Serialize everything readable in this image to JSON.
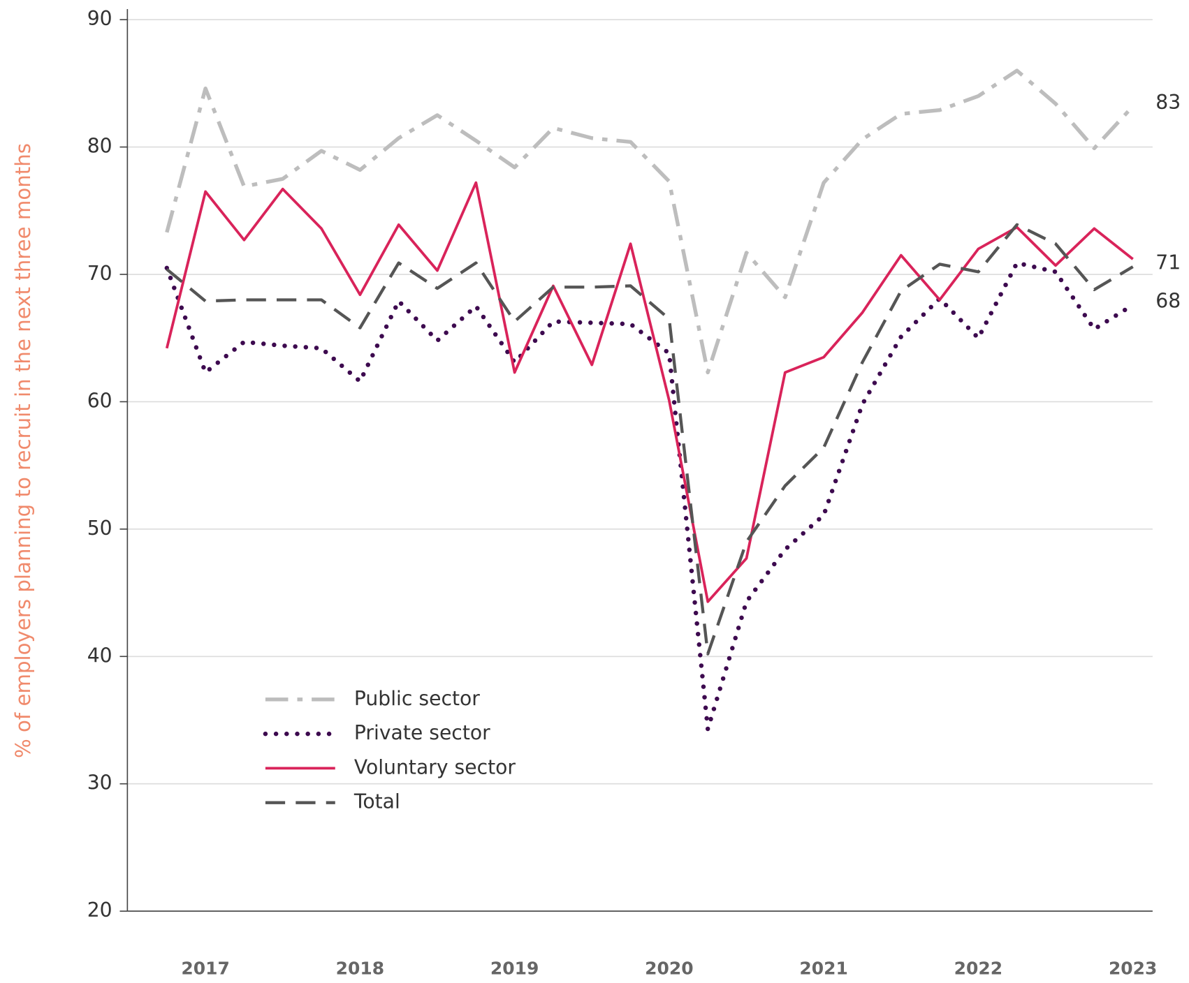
{
  "chart_data": {
    "type": "line",
    "ylabel": "% of employers planning to recruit in the next three months",
    "categories": [
      null,
      "2017",
      null,
      null,
      null,
      "2018",
      null,
      null,
      null,
      "2019",
      null,
      null,
      null,
      "2020",
      null,
      null,
      null,
      "2021",
      null,
      null,
      null,
      "2022",
      null,
      null,
      null,
      "2023"
    ],
    "ylim": [
      20,
      90
    ],
    "yticks": [
      20,
      30,
      40,
      50,
      60,
      70,
      80,
      90
    ],
    "grid": true,
    "legend": "lower left",
    "series": [
      {
        "name": "Public sector",
        "color": "#bdbdbd",
        "style": "dashdot",
        "end_label": "83",
        "values": [
          73.3,
          84.6,
          76.9,
          77.5,
          79.7,
          78.2,
          80.7,
          82.5,
          80.5,
          78.4,
          81.5,
          80.7,
          80.4,
          77.3,
          62.3,
          71.7,
          68.2,
          77.2,
          80.6,
          82.6,
          82.9,
          84.0,
          86.0,
          83.4,
          79.9,
          83.2
        ]
      },
      {
        "name": "Private sector",
        "color": "#3d0a4f",
        "style": "dotted",
        "end_label": "68",
        "values": [
          70.5,
          62.3,
          64.7,
          64.4,
          64.2,
          61.6,
          67.9,
          64.8,
          67.5,
          63.1,
          66.3,
          66.2,
          66.1,
          63.8,
          34.3,
          44.3,
          48.4,
          51.1,
          59.8,
          65.1,
          68.1,
          65.0,
          70.9,
          70.2,
          65.7,
          67.6
        ]
      },
      {
        "name": "Voluntary sector",
        "color": "#d9235a",
        "style": "solid",
        "values": [
          64.2,
          76.5,
          72.7,
          76.7,
          73.6,
          68.4,
          73.9,
          70.3,
          77.2,
          62.3,
          69.1,
          62.9,
          72.4,
          60.1,
          44.3,
          47.7,
          62.3,
          63.5,
          67.0,
          71.5,
          68.0,
          72.0,
          73.7,
          70.7,
          73.6,
          71.2
        ]
      },
      {
        "name": "Total",
        "color": "#555555",
        "style": "dashed",
        "end_label": "71",
        "values": [
          70.4,
          67.9,
          68.0,
          68.0,
          68.0,
          65.8,
          70.9,
          68.9,
          70.9,
          66.3,
          69.0,
          69.0,
          69.1,
          66.5,
          40.2,
          49.0,
          53.4,
          56.4,
          63.1,
          68.7,
          70.8,
          70.2,
          73.9,
          72.4,
          68.8,
          70.6
        ]
      }
    ]
  }
}
